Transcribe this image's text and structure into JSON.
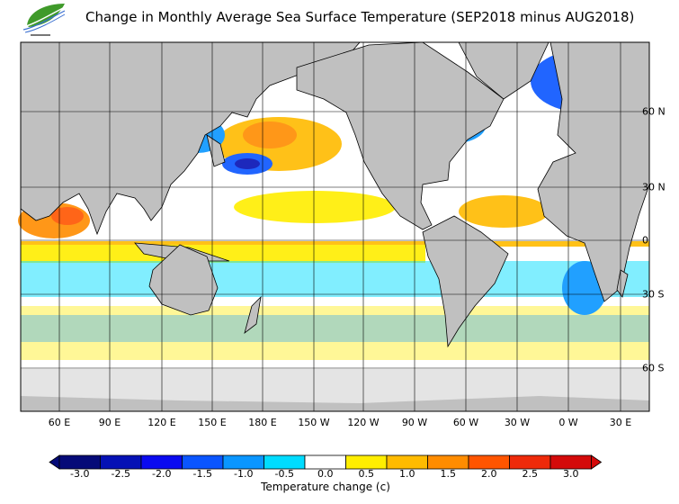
{
  "title": "Change in Monthly Average Sea Surface Temperature (SEP2018 minus AUG2018)",
  "logo_icon": "leaf-logo-icon",
  "map": {
    "longitude_labels": [
      "60 E",
      "90 E",
      "120 E",
      "150 E",
      "180 E",
      "150 W",
      "120 W",
      "90 W",
      "60 W",
      "30 W",
      "0 W",
      "30 E"
    ],
    "latitude_labels": [
      "60 N",
      "30 N",
      "0",
      "30 S",
      "60 S"
    ],
    "land_color": "#c0c0c0",
    "ice_color": "#e4e4e4"
  },
  "colorbar": {
    "title": "Temperature change  (c)",
    "tick_labels": [
      "-3.0",
      "-2.5",
      "-2.0",
      "-1.5",
      "-1.0",
      "-0.5",
      "0.0",
      "0.5",
      "1.0",
      "1.5",
      "2.0",
      "2.5",
      "3.0"
    ],
    "colors": [
      "#050a78",
      "#0511b5",
      "#0a0af0",
      "#0a55ff",
      "#0a96ff",
      "#00dcff",
      "#ffffff",
      "#ffee00",
      "#ffbb00",
      "#ff8c00",
      "#ff5500",
      "#ee2a0a",
      "#d40a0a"
    ],
    "under_color": "#050a78",
    "over_color": "#d40a0a"
  }
}
